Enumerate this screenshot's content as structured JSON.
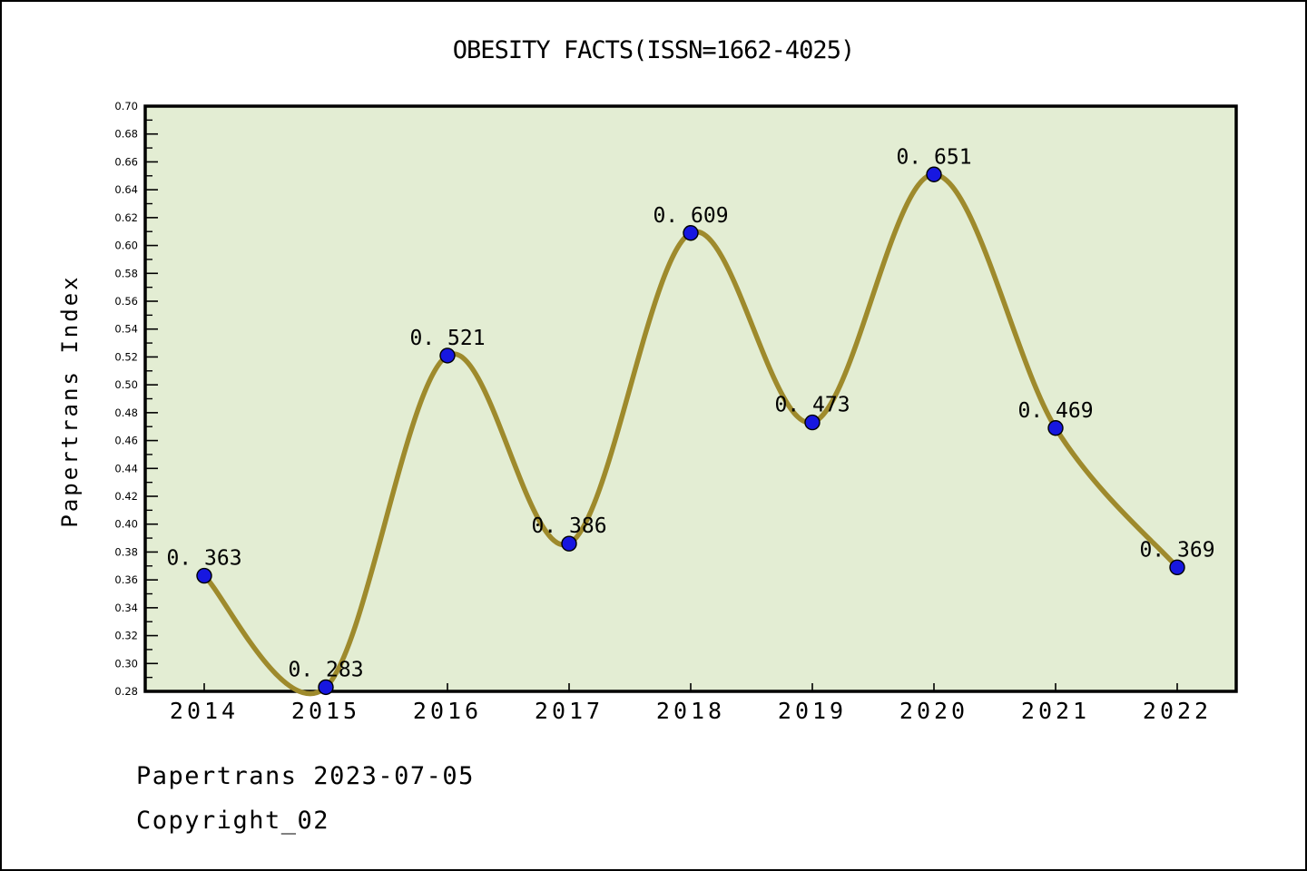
{
  "title": "OBESITY FACTS(ISSN=1662-4025)",
  "footer": {
    "line1": "Papertrans 2023-07-05",
    "line2": "Copyright_02"
  },
  "chart_data": {
    "type": "line",
    "title": "OBESITY FACTS(ISSN=1662-4025)",
    "xlabel": "",
    "ylabel": "Papertrans Index",
    "x": [
      2014,
      2015,
      2016,
      2017,
      2018,
      2019,
      2020,
      2021,
      2022
    ],
    "values": [
      0.363,
      0.283,
      0.521,
      0.386,
      0.609,
      0.473,
      0.651,
      0.469,
      0.369
    ],
    "point_labels": [
      "0. 363",
      "0. 283",
      "0. 521",
      "0. 386",
      "0. 609",
      "0. 473",
      "0. 651",
      "0. 469",
      "0. 369"
    ],
    "ylim": [
      0.28,
      0.7
    ],
    "ytick_major_step": 0.02,
    "ytick_minor_step": 0.01,
    "grid": false,
    "legend": "none",
    "line_smooth": true,
    "colors": {
      "page_bg": "#ffffff",
      "plot_bg": "#e3edd3",
      "line": "#9e8a2c",
      "marker_fill": "#1717e0",
      "marker_edge": "#000000",
      "axis_frame": "#000000",
      "tick": "#000000",
      "text": "#000000"
    }
  }
}
